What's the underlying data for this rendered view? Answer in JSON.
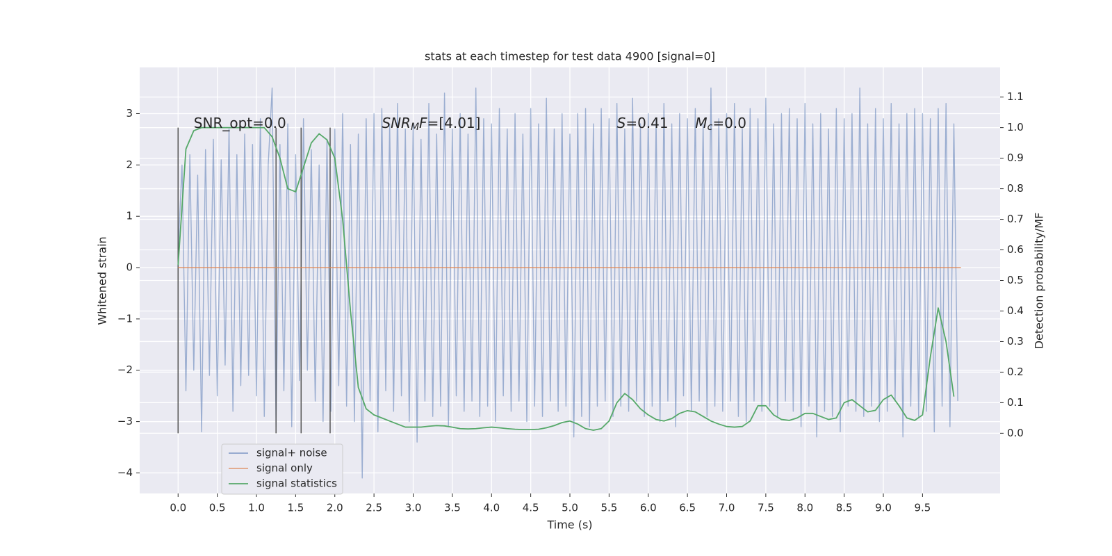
{
  "chart_data": {
    "type": "line",
    "title": "stats at each timestep for test data 4900 [signal=0]",
    "xlabel": "Time (s)",
    "ylabel": "Whitened strain",
    "y2label": "Detection probability/MF",
    "xlim": [
      -0.49,
      10.49
    ],
    "ylim": [
      -4.4,
      3.9
    ],
    "y2lim": [
      -0.197,
      1.197
    ],
    "xticks": [
      {
        "value": 0,
        "label": "0.0"
      },
      0.5,
      {
        "value": 1,
        "label": "1.0"
      },
      1.5,
      {
        "value": 2,
        "label": "2.0"
      },
      2.5,
      {
        "value": 3,
        "label": "3.0"
      },
      3.5,
      {
        "value": 4,
        "label": "4.0"
      },
      4.5,
      {
        "value": 5,
        "label": "5.0"
      },
      5.5,
      {
        "value": 6,
        "label": "6.0"
      },
      6.5,
      {
        "value": 7,
        "label": "7.0"
      },
      7.5,
      {
        "value": 8,
        "label": "8.0"
      },
      8.5,
      {
        "value": 9,
        "label": "9.0"
      },
      9.5
    ],
    "yticks": [
      {
        "value": -4,
        "label": "−4"
      },
      {
        "value": -3,
        "label": "−3"
      },
      {
        "value": -2,
        "label": "−2"
      },
      {
        "value": -1,
        "label": "−1"
      },
      0,
      1,
      2,
      3
    ],
    "y2ticks": [
      {
        "value": 0,
        "label": "0.0"
      },
      0.1,
      0.2,
      0.3,
      0.4,
      0.5,
      0.6,
      0.7,
      0.8,
      0.9,
      {
        "value": 1,
        "label": "1.0"
      },
      1.1
    ],
    "grid": true,
    "legend": "lower left",
    "series": [
      {
        "name": "signal+ noise",
        "color": "#4c72b0",
        "x": [
          0,
          0.05,
          0.1,
          0.15,
          0.2,
          0.25,
          0.3,
          0.35,
          0.4,
          0.45,
          0.5,
          0.55,
          0.6,
          0.65,
          0.7,
          0.75,
          0.8,
          0.85,
          0.9,
          0.95,
          1,
          1.05,
          1.1,
          1.15,
          1.2,
          1.25,
          1.3,
          1.35,
          1.4,
          1.45,
          1.5,
          1.55,
          1.6,
          1.65,
          1.7,
          1.75,
          1.8,
          1.85,
          1.9,
          1.95,
          2,
          2.05,
          2.1,
          2.15,
          2.2,
          2.25,
          2.3,
          2.35,
          2.4,
          2.45,
          2.5,
          2.55,
          2.6,
          2.65,
          2.7,
          2.75,
          2.8,
          2.85,
          2.9,
          2.95,
          3,
          3.05,
          3.1,
          3.15,
          3.2,
          3.25,
          3.3,
          3.35,
          3.4,
          3.45,
          3.5,
          3.55,
          3.6,
          3.65,
          3.7,
          3.75,
          3.8,
          3.85,
          3.9,
          3.95,
          4,
          4.05,
          4.1,
          4.15,
          4.2,
          4.25,
          4.3,
          4.35,
          4.4,
          4.45,
          4.5,
          4.55,
          4.6,
          4.65,
          4.7,
          4.75,
          4.8,
          4.85,
          4.9,
          4.95,
          5,
          5.05,
          5.1,
          5.15,
          5.2,
          5.25,
          5.3,
          5.35,
          5.4,
          5.45,
          5.5,
          5.55,
          5.6,
          5.65,
          5.7,
          5.75,
          5.8,
          5.85,
          5.9,
          5.95,
          6,
          6.05,
          6.1,
          6.15,
          6.2,
          6.25,
          6.3,
          6.35,
          6.4,
          6.45,
          6.5,
          6.55,
          6.6,
          6.65,
          6.7,
          6.75,
          6.8,
          6.85,
          6.9,
          6.95,
          7,
          7.05,
          7.1,
          7.15,
          7.2,
          7.25,
          7.3,
          7.35,
          7.4,
          7.45,
          7.5,
          7.55,
          7.6,
          7.65,
          7.7,
          7.75,
          7.8,
          7.85,
          7.9,
          7.95,
          8,
          8.05,
          8.1,
          8.15,
          8.2,
          8.25,
          8.3,
          8.35,
          8.4,
          8.45,
          8.5,
          8.55,
          8.6,
          8.65,
          8.7,
          8.75,
          8.8,
          8.85,
          8.9,
          8.95,
          9,
          9.05,
          9.1,
          9.15,
          9.2,
          9.25,
          9.3,
          9.35,
          9.4,
          9.45,
          9.5,
          9.55,
          9.6,
          9.65,
          9.7,
          9.75,
          9.8,
          9.85,
          9.9,
          9.95
        ],
        "values": [
          0.3,
          2.0,
          -2.4,
          2.2,
          -2.0,
          1.8,
          -3.2,
          2.3,
          -2.1,
          2.5,
          -2.5,
          2.1,
          -1.9,
          2.7,
          -2.8,
          2.2,
          -2.3,
          2.6,
          -2.1,
          2.4,
          -2.5,
          2.9,
          -2.9,
          2.0,
          3.5,
          -3.1,
          2.4,
          -2.4,
          2.8,
          -3.1,
          2.2,
          -2.2,
          2.9,
          -2.0,
          2.3,
          -2.6,
          2.0,
          -3.0,
          2.5,
          -2.8,
          2.7,
          -2.3,
          3.0,
          -2.7,
          2.4,
          -3.0,
          2.6,
          -4.1,
          2.9,
          -2.6,
          3.0,
          -3.2,
          3.1,
          -2.4,
          2.8,
          -2.8,
          3.2,
          -2.5,
          2.7,
          -3.0,
          2.8,
          -3.4,
          2.5,
          -2.6,
          3.2,
          -2.9,
          2.6,
          -2.7,
          3.4,
          -3.1,
          2.7,
          -2.5,
          3.0,
          -2.8,
          2.6,
          -2.6,
          3.5,
          -2.9,
          2.9,
          -2.7,
          2.8,
          -3.0,
          3.1,
          -2.5,
          2.7,
          -2.8,
          3.0,
          -2.6,
          2.6,
          -3.0,
          3.1,
          -2.7,
          2.8,
          -2.9,
          3.3,
          -2.6,
          2.7,
          -2.8,
          3.0,
          -2.7,
          2.6,
          -3.3,
          3.0,
          -2.9,
          3.1,
          -3.1,
          2.8,
          -2.7,
          3.1,
          -2.6,
          2.9,
          -2.9,
          3.2,
          -2.7,
          2.7,
          -2.8,
          3.3,
          -2.6,
          2.8,
          -2.9,
          3.0,
          -2.7,
          2.9,
          -3.0,
          3.2,
          -2.6,
          2.8,
          -3.1,
          3.0,
          -2.5,
          2.9,
          -2.8,
          3.1,
          -2.6,
          2.8,
          -2.9,
          3.5,
          -2.7,
          2.9,
          -2.8,
          3.0,
          -2.6,
          3.2,
          -2.9,
          2.7,
          -3.0,
          3.1,
          -2.6,
          2.9,
          -2.8,
          3.3,
          -2.7,
          2.8,
          -2.9,
          3.0,
          -2.6,
          3.1,
          -2.8,
          2.9,
          -3.1,
          3.2,
          -2.7,
          2.8,
          -3.3,
          3.0,
          -2.8,
          2.7,
          -2.9,
          3.1,
          -3.2,
          2.9,
          -2.7,
          3.0,
          -2.8,
          3.5,
          -2.9,
          2.8,
          -2.7,
          3.1,
          -3.0,
          2.9,
          -2.8,
          3.2,
          -2.6,
          2.8,
          -3.3,
          3.0,
          -2.7,
          3.1,
          -2.9,
          3.0,
          -2.8,
          2.9,
          -3.2,
          3.1,
          -2.7,
          3.2,
          -3.1,
          2.8,
          -2.6
        ]
      },
      {
        "name": "signal only",
        "color": "#dd8452",
        "x": [
          0,
          9.99
        ],
        "values": [
          0,
          0
        ]
      },
      {
        "name": "signal statistics",
        "color": "#55a868",
        "axis": "y2",
        "x": [
          0,
          0.1,
          0.2,
          0.3,
          0.4,
          0.5,
          0.6,
          0.7,
          0.8,
          0.9,
          1,
          1.1,
          1.2,
          1.3,
          1.4,
          1.5,
          1.6,
          1.7,
          1.8,
          1.9,
          2,
          2.1,
          2.2,
          2.3,
          2.4,
          2.5,
          2.6,
          2.7,
          2.8,
          2.9,
          3,
          3.1,
          3.2,
          3.3,
          3.4,
          3.5,
          3.6,
          3.7,
          3.8,
          3.9,
          4,
          4.1,
          4.2,
          4.3,
          4.4,
          4.5,
          4.6,
          4.7,
          4.8,
          4.9,
          5,
          5.1,
          5.2,
          5.3,
          5.4,
          5.5,
          5.6,
          5.7,
          5.8,
          5.9,
          6,
          6.1,
          6.2,
          6.3,
          6.4,
          6.5,
          6.6,
          6.7,
          6.8,
          6.9,
          7,
          7.1,
          7.2,
          7.3,
          7.4,
          7.5,
          7.6,
          7.7,
          7.8,
          7.9,
          8,
          8.1,
          8.2,
          8.3,
          8.4,
          8.5,
          8.6,
          8.7,
          8.8,
          8.9,
          9,
          9.1,
          9.2,
          9.3,
          9.4,
          9.5,
          9.6,
          9.7,
          9.8,
          9.9
        ],
        "values": [
          0.55,
          0.93,
          0.99,
          1.0,
          1.0,
          1.0,
          1.0,
          1.0,
          1.0,
          1.0,
          1.0,
          1.0,
          0.97,
          0.9,
          0.8,
          0.79,
          0.87,
          0.95,
          0.98,
          0.96,
          0.9,
          0.7,
          0.4,
          0.15,
          0.08,
          0.06,
          0.05,
          0.04,
          0.03,
          0.02,
          0.02,
          0.02,
          0.023,
          0.025,
          0.024,
          0.02,
          0.015,
          0.014,
          0.015,
          0.018,
          0.02,
          0.018,
          0.015,
          0.013,
          0.012,
          0.012,
          0.013,
          0.018,
          0.025,
          0.035,
          0.04,
          0.03,
          0.015,
          0.01,
          0.015,
          0.04,
          0.1,
          0.13,
          0.11,
          0.08,
          0.06,
          0.045,
          0.04,
          0.048,
          0.065,
          0.074,
          0.07,
          0.055,
          0.04,
          0.03,
          0.022,
          0.02,
          0.022,
          0.04,
          0.09,
          0.09,
          0.06,
          0.045,
          0.042,
          0.05,
          0.065,
          0.065,
          0.055,
          0.045,
          0.05,
          0.1,
          0.11,
          0.09,
          0.07,
          0.075,
          0.11,
          0.125,
          0.09,
          0.05,
          0.042,
          0.06,
          0.25,
          0.41,
          0.3,
          0.12
        ]
      }
    ],
    "vlines": {
      "x": [
        0,
        1.25,
        1.57,
        1.94
      ],
      "ymin": 0,
      "ymax": 1,
      "axis": "y2",
      "color": "#555555"
    },
    "annotations": [
      {
        "x": 0.2,
        "y": 2.8,
        "parts": [
          {
            "text": "SNR_opt=0.0"
          }
        ]
      },
      {
        "x": 2.6,
        "y": 2.8,
        "parts": [
          {
            "text": "SNR",
            "style": "italic"
          },
          {
            "text": "M",
            "style": "sub"
          },
          {
            "text": "F",
            "style": "italic"
          },
          {
            "text": "=[4.01]"
          }
        ]
      },
      {
        "x": 5.6,
        "y": 2.8,
        "parts": [
          {
            "text": "S",
            "style": "italic"
          },
          {
            "text": "=0.41"
          }
        ]
      },
      {
        "x": 6.6,
        "y": 2.8,
        "parts": [
          {
            "text": "M",
            "style": "italic"
          },
          {
            "text": "c",
            "style": "sub"
          },
          {
            "text": "=0.0"
          }
        ]
      }
    ]
  }
}
